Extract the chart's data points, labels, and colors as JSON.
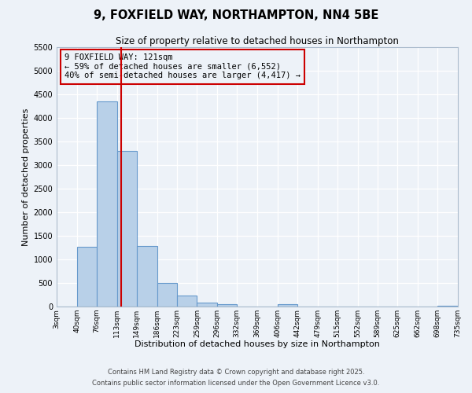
{
  "title": "9, FOXFIELD WAY, NORTHAMPTON, NN4 5BE",
  "subtitle": "Size of property relative to detached houses in Northampton",
  "xlabel": "Distribution of detached houses by size in Northampton",
  "ylabel": "Number of detached properties",
  "bin_labels": [
    "3sqm",
    "40sqm",
    "76sqm",
    "113sqm",
    "149sqm",
    "186sqm",
    "223sqm",
    "259sqm",
    "296sqm",
    "332sqm",
    "369sqm",
    "406sqm",
    "442sqm",
    "479sqm",
    "515sqm",
    "552sqm",
    "589sqm",
    "625sqm",
    "662sqm",
    "698sqm",
    "735sqm"
  ],
  "bin_edges": [
    3,
    40,
    76,
    113,
    149,
    186,
    223,
    259,
    296,
    332,
    369,
    406,
    442,
    479,
    515,
    552,
    589,
    625,
    662,
    698,
    735
  ],
  "bar_values": [
    0,
    1270,
    4350,
    3300,
    1280,
    500,
    240,
    85,
    50,
    0,
    0,
    50,
    0,
    0,
    0,
    0,
    0,
    0,
    0,
    20
  ],
  "bar_color": "#b8d0e8",
  "bar_edge_color": "#6699cc",
  "vline_x": 121,
  "vline_color": "#cc0000",
  "annotation_title": "9 FOXFIELD WAY: 121sqm",
  "annotation_line1": "← 59% of detached houses are smaller (6,552)",
  "annotation_line2": "40% of semi-detached houses are larger (4,417) →",
  "annotation_box_color": "#cc0000",
  "background_color": "#edf2f8",
  "grid_color": "#d0d8e8",
  "ylim": [
    0,
    5500
  ],
  "yticks": [
    0,
    500,
    1000,
    1500,
    2000,
    2500,
    3000,
    3500,
    4000,
    4500,
    5000,
    5500
  ],
  "footer_line1": "Contains HM Land Registry data © Crown copyright and database right 2025.",
  "footer_line2": "Contains public sector information licensed under the Open Government Licence v3.0."
}
